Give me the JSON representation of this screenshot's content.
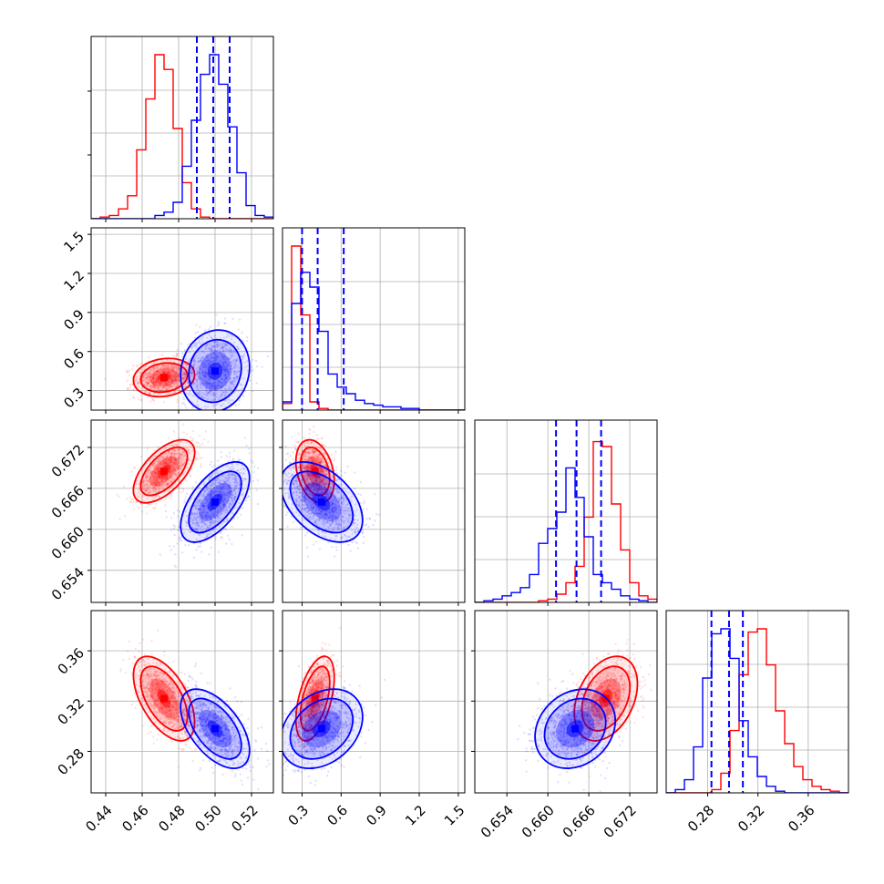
{
  "colors": {
    "red": "#ff0000",
    "blue": "#0000ff",
    "median_lines": "#0000ff",
    "grid": "#b0b0b0",
    "frame": "#000000"
  },
  "chart_data": {
    "type": "corner",
    "parameters": 4,
    "grid": true,
    "series": [
      {
        "color": "red",
        "params": [
          {
            "mean": 0.472,
            "sd": 0.008
          },
          {
            "mean": 0.4,
            "sd": 0.07
          },
          {
            "mean": 0.6685,
            "sd": 0.0022
          },
          {
            "mean": 0.322,
            "sd": 0.016
          }
        ],
        "histograms": [
          [
            0,
            0.01,
            0.02,
            0.06,
            0.14,
            0.42,
            0.73,
            1.0,
            0.91,
            0.55,
            0.22,
            0.06,
            0.01,
            0,
            0,
            0,
            0,
            0,
            0,
            0
          ],
          [
            0.04,
            1.0,
            0.58,
            0.05,
            0.01,
            0,
            0,
            0,
            0,
            0,
            0,
            0,
            0,
            0,
            0,
            0,
            0,
            0,
            0,
            0
          ],
          [
            0,
            0,
            0,
            0,
            0,
            0,
            0,
            0.01,
            0.02,
            0.05,
            0.12,
            0.22,
            0.52,
            0.98,
            0.95,
            0.6,
            0.32,
            0.12,
            0.04,
            0.02
          ],
          [
            0,
            0,
            0,
            0,
            0,
            0.02,
            0.12,
            0.38,
            0.72,
            0.98,
            1.0,
            0.78,
            0.5,
            0.3,
            0.16,
            0.08,
            0.04,
            0.02,
            0.01,
            0
          ]
        ]
      },
      {
        "color": "blue",
        "params": [
          {
            "mean": 0.5,
            "sd": 0.009
          },
          {
            "mean": 0.45,
            "sd": 0.15
          },
          {
            "mean": 0.664,
            "sd": 0.0028
          },
          {
            "mean": 0.298,
            "sd": 0.015
          }
        ],
        "histograms": [
          [
            0,
            0,
            0,
            0,
            0,
            0,
            0,
            0.02,
            0.04,
            0.1,
            0.32,
            0.6,
            0.88,
            1.0,
            0.82,
            0.56,
            0.28,
            0.08,
            0.02,
            0.01
          ],
          [
            0.05,
            0.65,
            0.84,
            0.75,
            0.48,
            0.22,
            0.14,
            0.1,
            0.06,
            0.04,
            0.03,
            0.02,
            0.02,
            0.01,
            0.01,
            0,
            0,
            0,
            0,
            0
          ],
          [
            0,
            0.01,
            0.02,
            0.04,
            0.06,
            0.09,
            0.17,
            0.36,
            0.45,
            0.55,
            0.82,
            0.64,
            0.4,
            0.17,
            0.12,
            0.08,
            0.04,
            0.02,
            0.01,
            0
          ],
          [
            0,
            0.02,
            0.08,
            0.28,
            0.7,
            0.97,
            1.0,
            0.82,
            0.44,
            0.22,
            0.1,
            0.04,
            0.01,
            0,
            0,
            0,
            0,
            0,
            0,
            0
          ]
        ]
      }
    ],
    "quantile_lines": [
      [
        0.49,
        0.499,
        0.508
      ],
      [
        0.3,
        0.42,
        0.62
      ],
      [
        0.6612,
        0.6642,
        0.6678
      ],
      [
        0.283,
        0.297,
        0.308
      ]
    ],
    "ranges": [
      [
        0.432,
        0.532
      ],
      [
        0.15,
        1.55
      ],
      [
        0.6493,
        0.676
      ],
      [
        0.247,
        0.392
      ]
    ],
    "ticks": [
      [
        0.44,
        0.46,
        0.48,
        0.5,
        0.52
      ],
      [
        0.3,
        0.6,
        0.9,
        1.2,
        1.5
      ],
      [
        0.654,
        0.66,
        0.666,
        0.672
      ],
      [
        0.28,
        0.32,
        0.36
      ]
    ],
    "tick_labels": [
      [
        "0.44",
        "0.46",
        "0.48",
        "0.50",
        "0.52"
      ],
      [
        "0.3",
        "0.6",
        "0.9",
        "1.2",
        "1.5"
      ],
      [
        "0.654",
        "0.660",
        "0.666",
        "0.672"
      ],
      [
        "0.28",
        "0.32",
        "0.36"
      ]
    ],
    "correlations": {
      "red": {
        "1-0": 0.15,
        "2-0": 0.6,
        "2-1": -0.3,
        "3-0": -0.55,
        "3-1": 0.5,
        "3-2": 0.35
      },
      "blue": {
        "1-0": 0.1,
        "2-0": 0.6,
        "2-1": -0.45,
        "3-0": -0.55,
        "3-1": 0.3,
        "3-2": 0.2
      }
    }
  }
}
